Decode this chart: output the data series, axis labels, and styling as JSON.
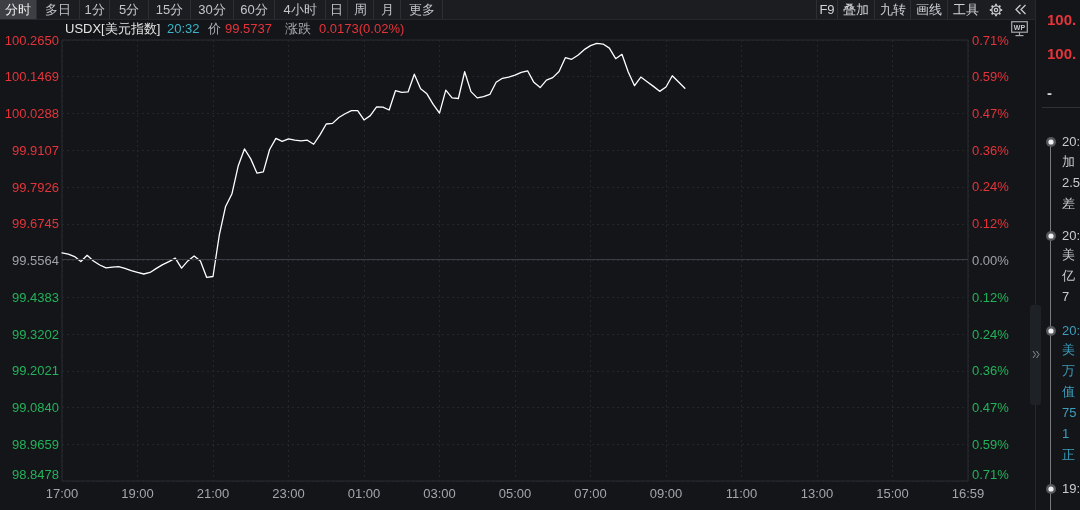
{
  "chart_data": {
    "type": "line",
    "title": "USDX[美元指数]",
    "annotations": [
      "分时",
      "多日",
      "1分",
      "5分",
      "15分",
      "30分",
      "60分",
      "4小时",
      "日",
      "周",
      "月",
      "更多",
      "F9",
      "叠加",
      "九转",
      "画线",
      "工具",
      "20:32",
      "价",
      "99.5737",
      "涨跌",
      "0.0173(0.02%)",
      "WP",
      "100.",
      "100.",
      "-",
      "20:",
      "加",
      "2.5",
      "差",
      "20:",
      "美",
      "亿",
      "7",
      "20:",
      "美",
      "万",
      "值",
      "75",
      "1",
      "正",
      "19:"
    ],
    "categories": [
      "17:00",
      null,
      null,
      null,
      null,
      null,
      null,
      null,
      null,
      null,
      null,
      null,
      "19:00",
      null,
      null,
      null,
      null,
      null,
      null,
      null,
      null,
      null,
      null,
      null,
      "21:00",
      null,
      null,
      null,
      null,
      null,
      null,
      null,
      null,
      null,
      null,
      null,
      "23:00",
      null,
      null,
      null,
      null,
      null,
      null,
      null,
      null,
      null,
      null,
      null,
      "01:00",
      null,
      null,
      null,
      null,
      null,
      null,
      null,
      null,
      null,
      null,
      null,
      "03:00",
      null,
      null,
      null,
      null,
      null,
      null,
      null,
      null,
      null,
      null,
      null,
      "05:00",
      null,
      null,
      null,
      null,
      null,
      null,
      null,
      null,
      null,
      null,
      null,
      "07:00",
      null,
      null,
      null,
      null,
      null,
      null,
      null,
      null,
      null,
      null,
      null,
      "09:00",
      null,
      null,
      null,
      null,
      null,
      null,
      null,
      null,
      null,
      null,
      null,
      "11:00",
      null,
      null,
      null,
      null,
      null,
      null,
      null,
      null,
      null,
      null,
      null,
      "13:00",
      null,
      null,
      null,
      null,
      null,
      null,
      null,
      null,
      null,
      null,
      null,
      "15:00",
      null,
      null,
      null,
      null,
      null,
      null,
      null,
      null,
      null,
      null,
      null,
      "16:59"
    ],
    "values": [
      99.581,
      99.577,
      99.569,
      99.553,
      99.573,
      99.555,
      99.542,
      99.533,
      99.535,
      99.537,
      99.531,
      99.524,
      99.518,
      99.513,
      99.518,
      99.531,
      99.543,
      99.553,
      99.564,
      99.532,
      99.555,
      99.571,
      99.555,
      99.502,
      99.505,
      99.638,
      99.73,
      99.77,
      99.86,
      99.915,
      99.883,
      99.837,
      99.841,
      99.913,
      99.949,
      99.939,
      99.947,
      99.943,
      99.941,
      99.943,
      99.93,
      99.96,
      99.995,
      99.997,
      100.016,
      100.028,
      100.038,
      100.038,
      100.008,
      100.022,
      100.05,
      100.049,
      100.04,
      100.102,
      100.097,
      100.098,
      100.155,
      100.108,
      100.092,
      100.058,
      100.03,
      100.104,
      100.079,
      100.077,
      100.163,
      100.099,
      100.079,
      100.083,
      100.09,
      100.129,
      100.142,
      100.146,
      100.152,
      100.161,
      100.166,
      100.129,
      100.112,
      100.136,
      100.144,
      100.164,
      100.208,
      100.203,
      100.216,
      100.234,
      100.247,
      100.254,
      100.252,
      100.239,
      100.205,
      100.219,
      100.162,
      100.118,
      100.146,
      100.131,
      100.116,
      100.1,
      100.114,
      100.15,
      100.13,
      100.11,
      null,
      null,
      null,
      null,
      null,
      null,
      null,
      null,
      null,
      null,
      null,
      null,
      null,
      null,
      null,
      null,
      null,
      null,
      null,
      null,
      null,
      null,
      null,
      null,
      null,
      null,
      null,
      null,
      null,
      null,
      null,
      null,
      null,
      null,
      null,
      null,
      null,
      null,
      null,
      null,
      null,
      null,
      null,
      null,
      null
    ],
    "color": "#ffffff",
    "ylim": [
      98.8478,
      100.265
    ],
    "yticks": [
      98.8478,
      98.9659,
      {
        "value": 99.084,
        "label": "99.0840"
      },
      99.2021,
      99.3202,
      99.4383,
      99.5564,
      99.6745,
      99.7926,
      99.9107,
      100.0288,
      100.1469,
      {
        "value": 100.265,
        "label": "100.2650"
      }
    ],
    "y2lim": [
      -0.7118,
      0.7118
    ],
    "y2ticks": [
      {
        "value": 0,
        "label": "0.00%"
      },
      {
        "value": 0.1186,
        "label": "0.12%"
      },
      {
        "value": 0.2373,
        "label": "0.24%"
      },
      {
        "value": 0.3559,
        "label": "0.36%"
      },
      {
        "value": 0.4745,
        "label": "0.47%"
      },
      {
        "value": 0.5931,
        "label": "0.59%"
      },
      {
        "value": 0.7118,
        "label": "0.71%"
      }
    ],
    "y3lim": [
      0.7118,
      -0.7118
    ],
    "y3ticks": [
      {
        "value": 0.1186,
        "label": "0.12%"
      },
      {
        "value": 0.2373,
        "label": "0.24%"
      },
      {
        "value": 0.3559,
        "label": "0.36%"
      },
      {
        "value": 0.4745,
        "label": "0.47%"
      },
      {
        "value": 0.5931,
        "label": "0.59%"
      },
      {
        "value": 0.7118,
        "label": "0.71%"
      }
    ],
    "ref_lines": [
      {
        "axis": "y",
        "value": 99.5564,
        "color": "#3a3d43",
        "line_style": "solid"
      }
    ],
    "grid": true
  }
}
